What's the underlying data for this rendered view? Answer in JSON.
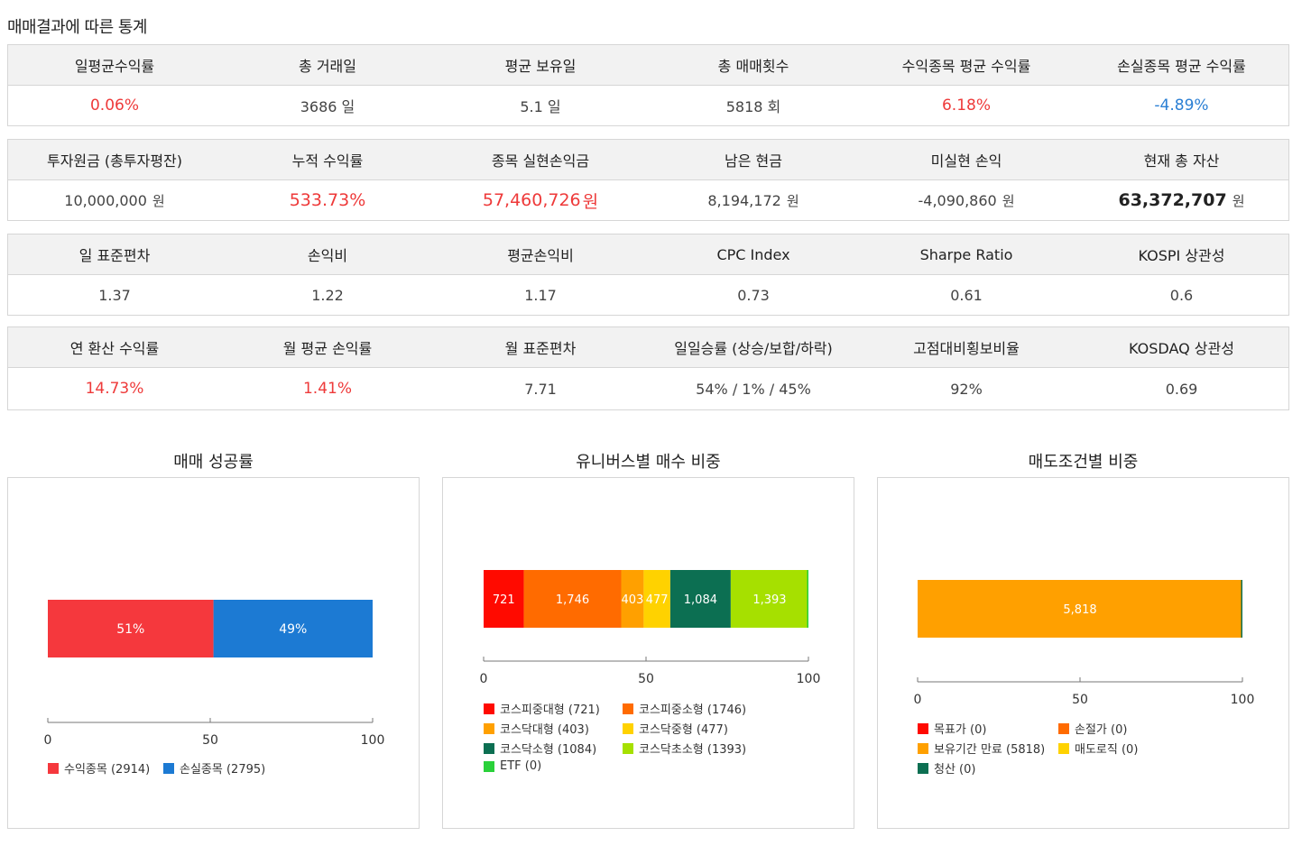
{
  "page_title": "매매결과에 따른 통계",
  "stat_blocks": [
    {
      "headers": [
        "일평균수익률",
        "총 거래일",
        "평균 보유일",
        "총 매매횟수",
        "수익종목 평균 수익률",
        "손실종목 평균 수익률"
      ],
      "values": [
        "0.06%",
        "3686 일",
        "5.1 일",
        "5818 회",
        "6.18%",
        "-4.89%"
      ]
    },
    {
      "headers": [
        "투자원금 (총투자평잔)",
        "누적 수익률",
        "종목 실현손익금",
        "남은 현금",
        "미실현 손익",
        "현재 총 자산"
      ],
      "values": [
        "10,000,000",
        "533.73%",
        "57,460,726",
        "8,194,172",
        "-4,090,860",
        "63,372,707"
      ],
      "unit": "원"
    },
    {
      "headers": [
        "일 표준편차",
        "손익비",
        "평균손익비",
        "CPC Index",
        "Sharpe Ratio",
        "KOSPI 상관성"
      ],
      "values": [
        "1.37",
        "1.22",
        "1.17",
        "0.73",
        "0.61",
        "0.6"
      ]
    },
    {
      "headers": [
        "연 환산 수익률",
        "월 평균 손익률",
        "월 표준편차",
        "일일승률 (상승/보합/하락)",
        "고점대비횡보비율",
        "KOSDAQ 상관성"
      ],
      "values": [
        "14.73%",
        "1.41%",
        "7.71",
        "54% / 1% / 45%",
        "92%",
        "0.69"
      ]
    }
  ],
  "colors": {
    "positive": "#ee3a3a",
    "negative": "#2a7fd4",
    "header_bg": "#f2f2f2",
    "border": "#d6d6d6"
  },
  "chart_data": [
    {
      "type": "bar",
      "stacked": "horizontal-100",
      "title": "매매 성공률",
      "xlim": [
        0,
        100
      ],
      "xticks": [
        0,
        50,
        100
      ],
      "series": [
        {
          "name": "수익종목",
          "count": 2914,
          "value": 51,
          "label": "51%",
          "color": "#f5383d"
        },
        {
          "name": "손실종목",
          "count": 2795,
          "value": 49,
          "label": "49%",
          "color": "#1c7ad3"
        }
      ],
      "legend": [
        "수익종목 (2914)",
        "손실종목 (2795)"
      ]
    },
    {
      "type": "bar",
      "stacked": "horizontal-100",
      "title": "유니버스별 매수 비중",
      "xlim": [
        0,
        100
      ],
      "xticks": [
        0,
        50,
        100
      ],
      "series": [
        {
          "name": "코스피중대형",
          "value": 721,
          "label": "721",
          "color": "#ff0a00"
        },
        {
          "name": "코스피중소형",
          "value": 1746,
          "label": "1,746",
          "color": "#ff6b00"
        },
        {
          "name": "코스닥대형",
          "value": 403,
          "label": "403",
          "color": "#ffa000"
        },
        {
          "name": "코스닥중형",
          "value": 477,
          "label": "477",
          "color": "#ffd200"
        },
        {
          "name": "코스닥소형",
          "value": 1084,
          "label": "1,084",
          "color": "#0c6f52"
        },
        {
          "name": "코스닥초소형",
          "value": 1393,
          "label": "1,393",
          "color": "#a6e000"
        },
        {
          "name": "ETF",
          "value": 0,
          "label": "",
          "color": "#2ad13a"
        }
      ],
      "legend": [
        "코스피중대형 (721)",
        "코스피중소형 (1746)",
        "코스닥대형 (403)",
        "코스닥중형 (477)",
        "코스닥소형 (1084)",
        "코스닥초소형 (1393)",
        "ETF (0)"
      ]
    },
    {
      "type": "bar",
      "stacked": "horizontal-100",
      "title": "매도조건별 비중",
      "xlim": [
        0,
        100
      ],
      "xticks": [
        0,
        50,
        100
      ],
      "series": [
        {
          "name": "목표가",
          "value": 0,
          "label": "",
          "color": "#ff0a00"
        },
        {
          "name": "손절가",
          "value": 0,
          "label": "",
          "color": "#ff6b00"
        },
        {
          "name": "보유기간 만료",
          "value": 5818,
          "label": "5,818",
          "color": "#ffa000"
        },
        {
          "name": "매도로직",
          "value": 0,
          "label": "",
          "color": "#ffd200"
        },
        {
          "name": "청산",
          "value": 0,
          "label": "",
          "color": "#0c6f52"
        }
      ],
      "legend": [
        "목표가 (0)",
        "손절가 (0)",
        "보유기간 만료 (5818)",
        "매도로직 (0)",
        "청산 (0)"
      ]
    }
  ]
}
